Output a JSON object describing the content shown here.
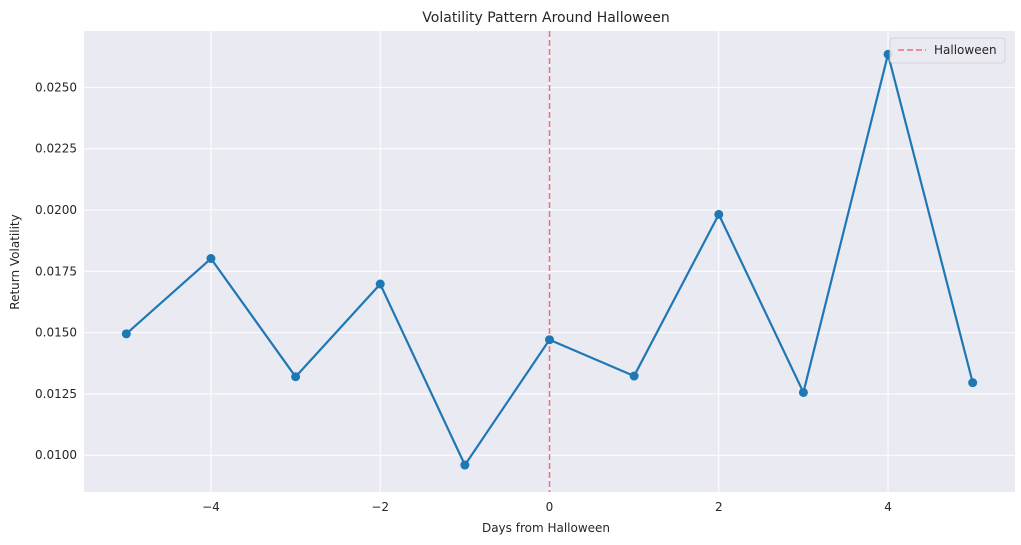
{
  "chart_data": {
    "type": "line",
    "title": "Volatility Pattern Around Halloween",
    "xlabel": "Days from Halloween",
    "ylabel": "Return Volatility",
    "x": [
      -5,
      -4,
      -3,
      -2,
      -1,
      0,
      1,
      2,
      3,
      4,
      5
    ],
    "y": [
      0.01495,
      0.01802,
      0.0132,
      0.01698,
      0.0096,
      0.01471,
      0.01323,
      0.01982,
      0.01256,
      0.02635,
      0.01296
    ],
    "xlim": [
      -5.5,
      5.5
    ],
    "ylim": [
      0.0085,
      0.0273
    ],
    "xticks": [
      -4,
      -2,
      0,
      2,
      4
    ],
    "xtick_labels": [
      "−4",
      "−2",
      "0",
      "2",
      "4"
    ],
    "yticks": [
      0.01,
      0.0125,
      0.015,
      0.0175,
      0.02,
      0.0225,
      0.025
    ],
    "ytick_labels": [
      "0.0100",
      "0.0125",
      "0.0150",
      "0.0175",
      "0.0200",
      "0.0225",
      "0.0250"
    ],
    "vline": {
      "x": 0,
      "label": "Halloween",
      "color": "#f07070",
      "style": "dashed"
    },
    "series_color": "#1f77b4",
    "background_color": "#eaeaf2",
    "grid": true,
    "legend": {
      "position": "top-right",
      "entries": [
        "Halloween"
      ]
    }
  }
}
